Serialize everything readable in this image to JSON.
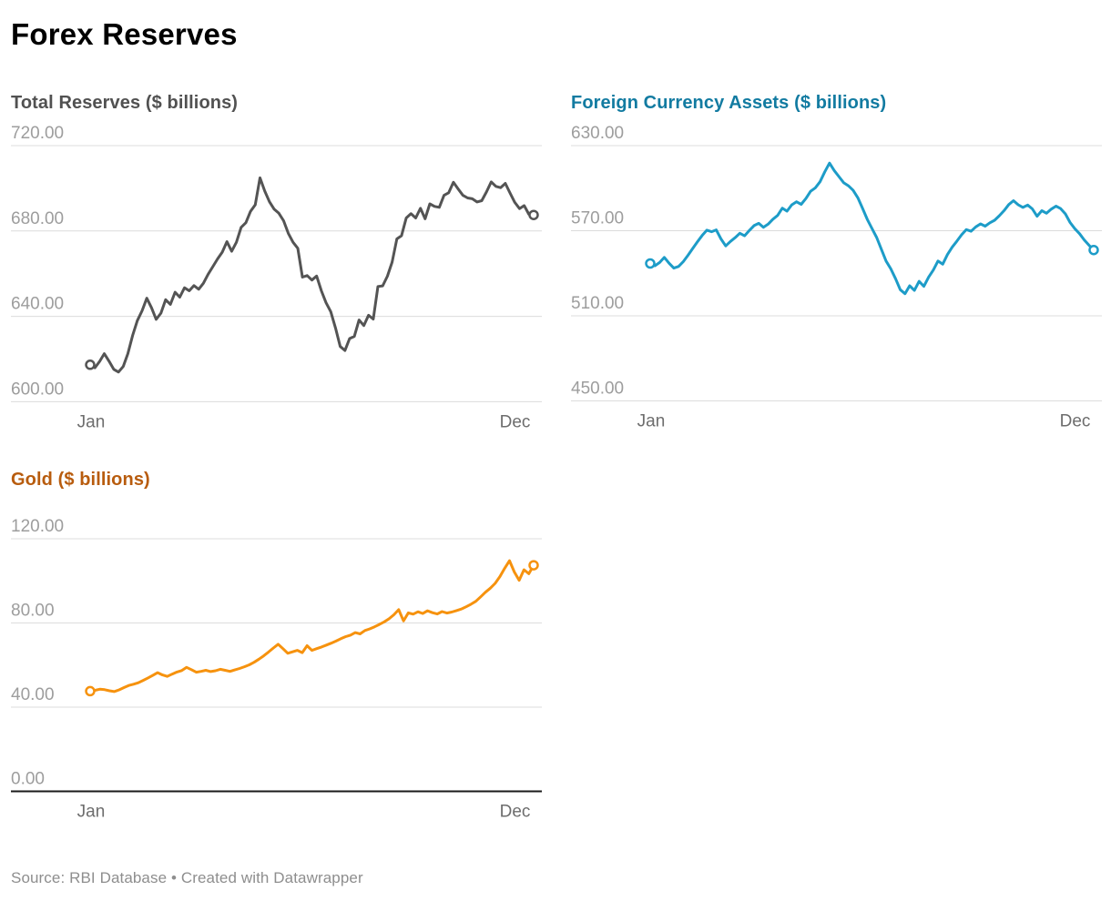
{
  "page": {
    "title": "Forex Reserves",
    "source": "Source: RBI Database • Created with Datawrapper"
  },
  "colors": {
    "page_title": "#000000",
    "gridline": "#dcdcdc",
    "zero_baseline": "#1a1a1a",
    "y_tick_label": "#9d9d9d",
    "x_tick_label": "#6d6d6d",
    "footer_text": "#8e8e8e",
    "total_reserves_line": "#545454",
    "total_reserves_title": "#515151",
    "fca_line": "#1d9cc8",
    "fca_title": "#127ba1",
    "gold_line": "#f6920e",
    "gold_title": "#b85c0e"
  },
  "chart_data": [
    {
      "id": "total-reserves",
      "type": "line",
      "title": "Total Reserves ($ billions)",
      "title_color": "#515151",
      "line_color": "#545454",
      "legend_position": "none",
      "grid": "horizontal",
      "x_ticks": [
        "Jan",
        "Dec"
      ],
      "y_ticks": [
        720,
        680,
        640,
        600
      ],
      "ylim": [
        600,
        720
      ],
      "tick_format": "0.00",
      "zero_baseline": false,
      "endpoint_markers": "open-circle-first-last",
      "values": [
        617.3,
        615.9,
        618.9,
        622.5,
        619.0,
        615.2,
        613.9,
        616.5,
        622.5,
        631.0,
        638.0,
        642.6,
        648.5,
        644.0,
        638.6,
        641.5,
        647.8,
        645.6,
        651.3,
        649.0,
        653.4,
        652.0,
        654.4,
        652.7,
        655.5,
        659.7,
        663.3,
        666.9,
        670.1,
        675.0,
        670.5,
        674.7,
        681.7,
        683.9,
        689.2,
        692.3,
        704.9,
        698.7,
        693.7,
        690.2,
        688.3,
        684.8,
        678.9,
        674.7,
        671.9,
        658.4,
        659.1,
        657.0,
        658.9,
        652.0,
        646.4,
        642.2,
        634.6,
        625.9,
        624.0,
        629.6,
        630.6,
        638.3,
        635.7,
        640.5,
        638.7,
        654.0,
        654.3,
        658.8,
        665.4,
        676.3,
        677.8,
        686.1,
        688.1,
        686.1,
        690.6,
        685.7,
        692.7,
        691.5,
        691.1,
        696.7,
        697.9,
        702.8,
        699.7,
        696.7,
        695.5,
        695.1,
        693.6,
        694.2,
        698.3,
        703.0,
        700.9,
        700.3,
        702.3,
        697.8,
        693.4,
        690.5,
        691.9,
        687.8,
        687.5
      ]
    },
    {
      "id": "foreign-currency-assets",
      "type": "line",
      "title": "Foreign Currency Assets ($ billions)",
      "title_color": "#127ba1",
      "line_color": "#1d9cc8",
      "legend_position": "none",
      "grid": "horizontal",
      "x_ticks": [
        "Jan",
        "Dec"
      ],
      "y_ticks": [
        630,
        570,
        510,
        450
      ],
      "ylim": [
        450,
        630
      ],
      "tick_format": "0.00",
      "zero_baseline": false,
      "endpoint_markers": "open-circle-first-last",
      "values": [
        546.9,
        545.3,
        547.6,
        551.2,
        547.1,
        543.6,
        544.8,
        548.2,
        552.6,
        557.4,
        562.1,
        566.6,
        570.4,
        569.3,
        570.6,
        564.2,
        559.3,
        562.4,
        565.1,
        568.2,
        566.4,
        570.1,
        573.6,
        575.2,
        572.4,
        574.6,
        578.1,
        580.8,
        585.9,
        583.8,
        588.2,
        590.4,
        588.6,
        592.7,
        597.8,
        600.2,
        604.5,
        611.5,
        617.7,
        612.4,
        608.2,
        603.9,
        601.7,
        598.5,
        593.2,
        585.9,
        578.1,
        571.6,
        565.2,
        556.8,
        548.6,
        543.1,
        536.2,
        528.4,
        525.6,
        531.2,
        527.9,
        534.3,
        530.8,
        537.2,
        542.3,
        548.6,
        546.4,
        553.2,
        558.4,
        562.7,
        567.1,
        570.8,
        569.6,
        572.7,
        574.8,
        573.2,
        575.6,
        577.4,
        580.6,
        584.2,
        588.4,
        591.2,
        588.3,
        586.4,
        588.1,
        585.4,
        580.2,
        584.1,
        582.3,
        585.2,
        587.3,
        585.6,
        581.9,
        575.8,
        571.4,
        567.9,
        563.5,
        559.8,
        556.4
      ]
    },
    {
      "id": "gold",
      "type": "line",
      "title": "Gold ($ billions)",
      "title_color": "#b85c0e",
      "line_color": "#f6920e",
      "legend_position": "none",
      "grid": "horizontal",
      "x_ticks": [
        "Jan",
        "Dec"
      ],
      "y_ticks": [
        120,
        80,
        40,
        0
      ],
      "ylim": [
        0,
        120
      ],
      "tick_format": "0.00",
      "zero_baseline": true,
      "endpoint_markers": "open-circle-first-last",
      "values": [
        47.6,
        48.0,
        48.5,
        48.3,
        47.8,
        47.4,
        48.2,
        49.3,
        50.3,
        50.9,
        51.6,
        52.7,
        53.9,
        55.1,
        56.4,
        55.3,
        54.6,
        55.7,
        56.7,
        57.4,
        58.9,
        57.8,
        56.6,
        57.0,
        57.5,
        56.9,
        57.3,
        58.0,
        57.5,
        57.0,
        57.7,
        58.4,
        59.2,
        60.1,
        61.3,
        62.8,
        64.4,
        66.2,
        68.1,
        69.9,
        67.8,
        65.6,
        66.3,
        67.0,
        65.9,
        69.2,
        67.0,
        67.8,
        68.6,
        69.5,
        70.4,
        71.4,
        72.5,
        73.5,
        74.2,
        75.4,
        74.8,
        76.4,
        77.2,
        78.2,
        79.3,
        80.5,
        82.0,
        83.9,
        86.3,
        81.0,
        84.8,
        84.2,
        85.3,
        84.5,
        85.8,
        84.9,
        84.3,
        85.4,
        84.7,
        85.2,
        85.9,
        86.6,
        87.7,
        88.9,
        90.3,
        92.4,
        94.6,
        96.5,
        98.8,
        102.0,
        106.0,
        109.6,
        104.2,
        100.3,
        105.3,
        103.4,
        107.4
      ]
    }
  ]
}
